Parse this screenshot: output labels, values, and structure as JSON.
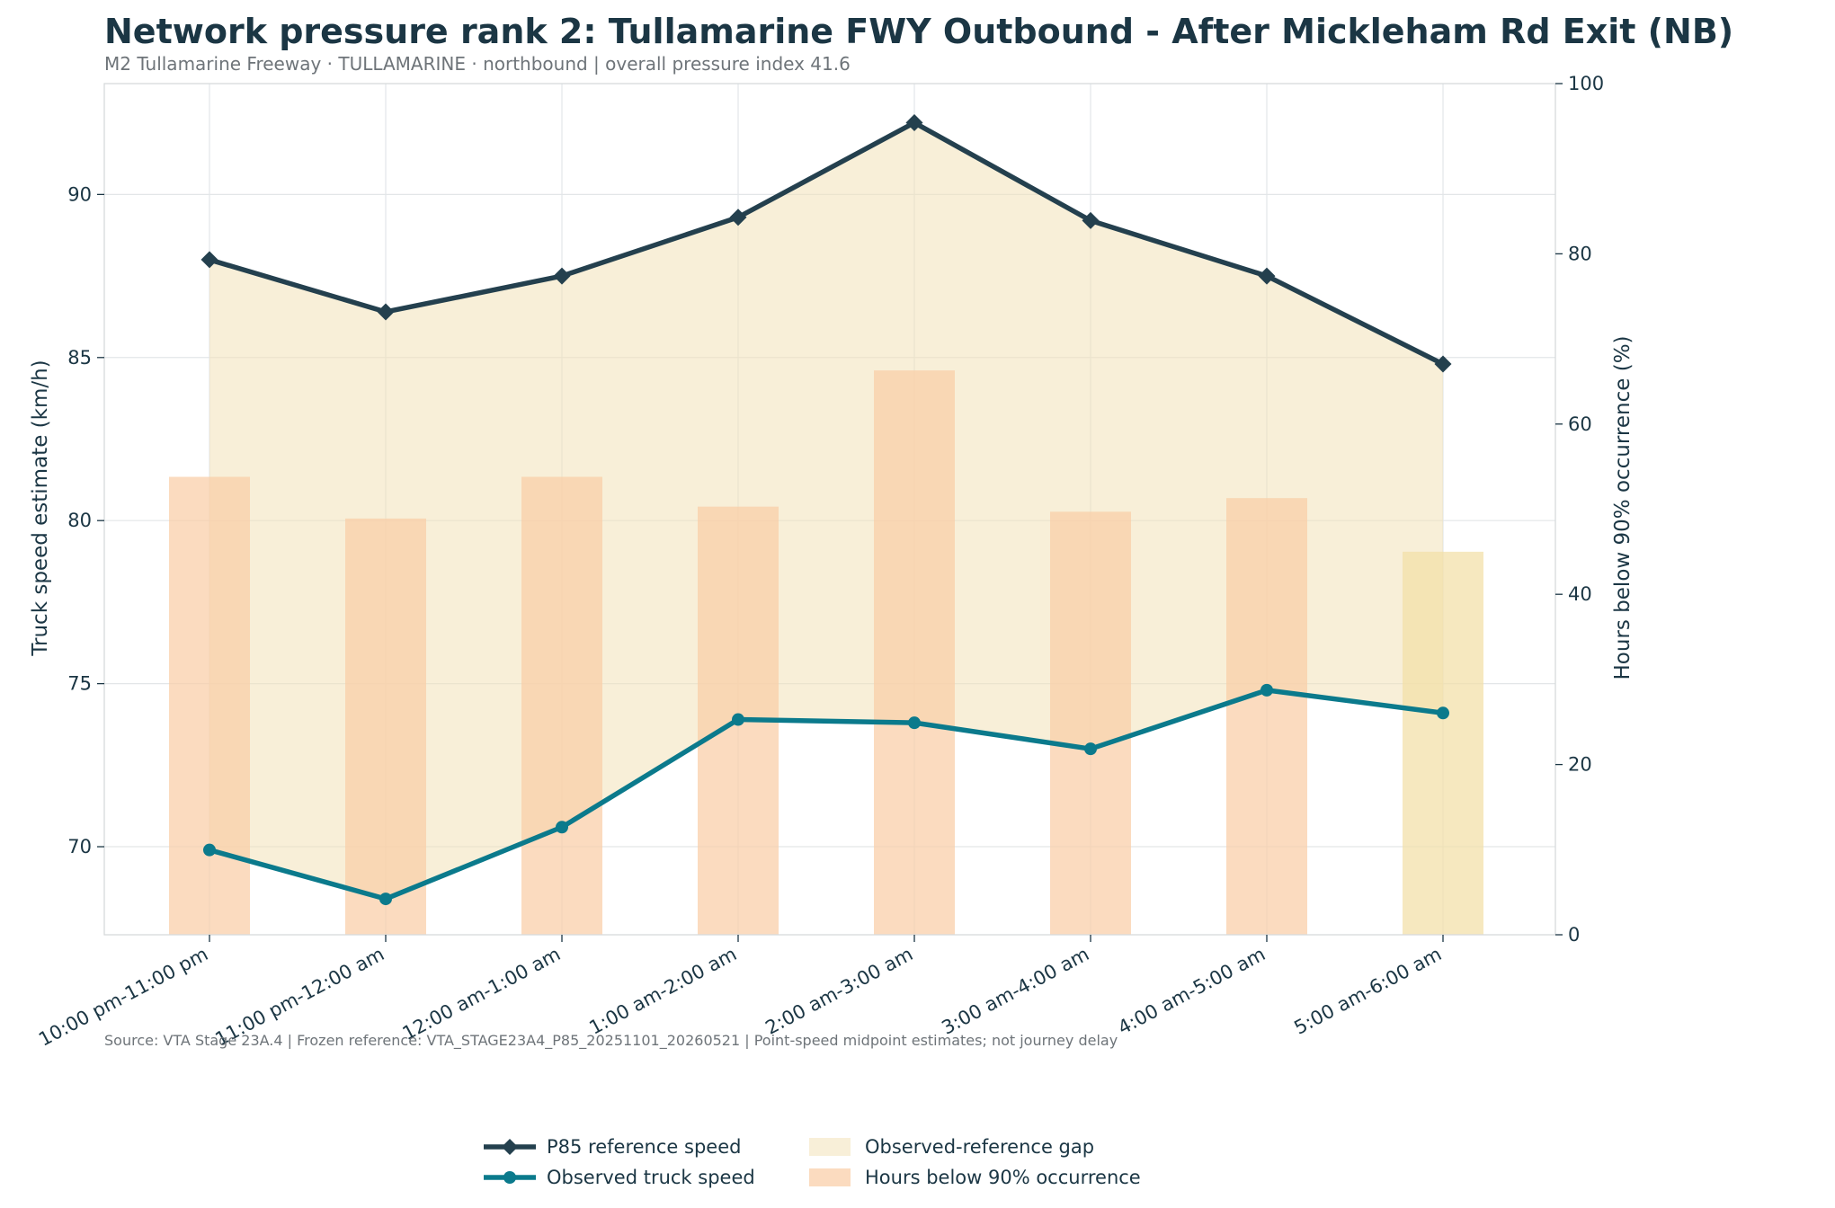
{
  "chart_data": {
    "type": "bar+line",
    "title": "Network pressure rank 2: Tullamarine FWY Outbound - After Mickleham Rd Exit (NB)",
    "subtitle": "M2 Tullamarine Freeway · TULLAMARINE · northbound | overall pressure index 41.6",
    "source_note": "Source: VTA Stage 23A.4 | Frozen reference: VTA_STAGE23A4_P85_20251101_20260521 | Point-speed midpoint estimates; not journey delay",
    "categories": [
      "10:00 pm-11:00 pm",
      "11:00 pm-12:00 am",
      "12:00 am-1:00 am",
      "1:00 am-2:00 am",
      "2:00 am-3:00 am",
      "3:00 am-4:00 am",
      "4:00 am-5:00 am",
      "5:00 am-6:00 am"
    ],
    "ylabel_left": "Truck speed estimate (km/h)",
    "ylabel_right": "Hours below 90% occurrence (%)",
    "ylim_left": [
      67.3,
      93.4
    ],
    "ylim_right": [
      0,
      100
    ],
    "yticks_left": [
      "70",
      "75",
      "80",
      "85",
      "90"
    ],
    "yticks_right": [
      "0",
      "20",
      "40",
      "60",
      "80",
      "100"
    ],
    "grid": true,
    "legend_position": "bottom-center",
    "series": [
      {
        "name": "P85 reference speed",
        "kind": "line",
        "axis": "left",
        "marker": "diamond",
        "color": "#24404e",
        "values": [
          88.0,
          86.4,
          87.5,
          89.3,
          92.2,
          89.2,
          87.5,
          84.8
        ]
      },
      {
        "name": "Observed truck speed",
        "kind": "line",
        "axis": "left",
        "marker": "circle",
        "color": "#0b7a8c",
        "values": [
          69.9,
          68.4,
          70.6,
          73.9,
          73.8,
          73.0,
          74.8,
          74.1
        ]
      },
      {
        "name": "Observed-reference gap",
        "kind": "area",
        "color": "#f2e1b8"
      },
      {
        "name": "Hours below 90% occurrence",
        "kind": "bar",
        "axis": "right",
        "color": "#f9cda6",
        "alt_color": "#f2dfa6",
        "values": [
          53.8,
          48.9,
          53.8,
          50.3,
          66.3,
          49.7,
          51.3,
          45.0
        ]
      }
    ]
  }
}
